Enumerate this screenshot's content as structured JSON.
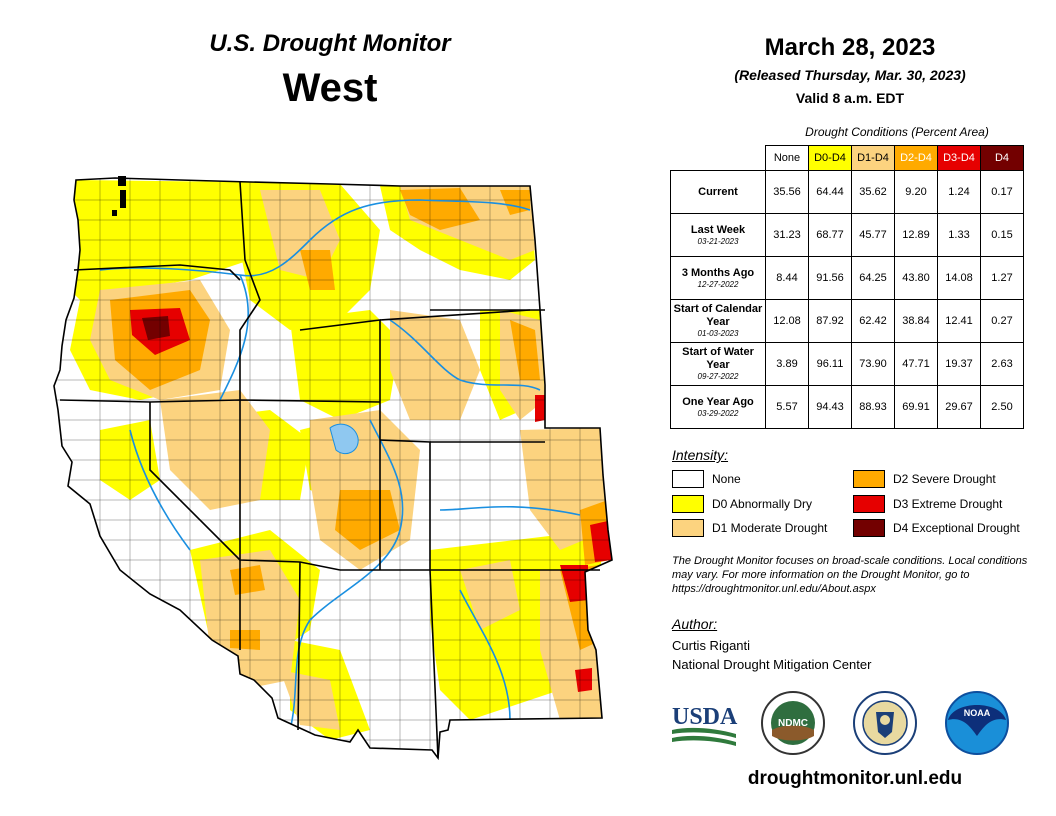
{
  "header": {
    "product": "U.S. Drought Monitor",
    "region": "West",
    "date": "March 28, 2023",
    "released": "(Released Thursday, Mar. 30, 2023)",
    "valid": "Valid 8 a.m. EDT"
  },
  "table": {
    "caption": "Drought Conditions (Percent Area)",
    "columns": [
      "None",
      "D0-D4",
      "D1-D4",
      "D2-D4",
      "D3-D4",
      "D4"
    ],
    "rows": [
      {
        "label": "Current",
        "date": "",
        "values": [
          "35.56",
          "64.44",
          "35.62",
          "9.20",
          "1.24",
          "0.17"
        ]
      },
      {
        "label": "Last Week",
        "date": "03-21-2023",
        "values": [
          "31.23",
          "68.77",
          "45.77",
          "12.89",
          "1.33",
          "0.15"
        ]
      },
      {
        "label": "3 Months Ago",
        "date": "12-27-2022",
        "values": [
          "8.44",
          "91.56",
          "64.25",
          "43.80",
          "14.08",
          "1.27"
        ]
      },
      {
        "label": "Start of Calendar Year",
        "date": "01-03-2023",
        "values": [
          "12.08",
          "87.92",
          "62.42",
          "38.84",
          "12.41",
          "0.27"
        ]
      },
      {
        "label": "Start of Water Year",
        "date": "09-27-2022",
        "values": [
          "3.89",
          "96.11",
          "73.90",
          "47.71",
          "19.37",
          "2.63"
        ]
      },
      {
        "label": "One Year Ago",
        "date": "03-29-2022",
        "values": [
          "5.57",
          "94.43",
          "88.93",
          "69.91",
          "29.67",
          "2.50"
        ]
      }
    ]
  },
  "legend": {
    "title": "Intensity:",
    "items": [
      {
        "label": "None",
        "color": "#ffffff"
      },
      {
        "label": "D0 Abnormally Dry",
        "color": "#ffff00"
      },
      {
        "label": "D1 Moderate Drought",
        "color": "#fcd37f"
      },
      {
        "label": "D2 Severe Drought",
        "color": "#ffaa00"
      },
      {
        "label": "D3 Extreme Drought",
        "color": "#e60000"
      },
      {
        "label": "D4 Exceptional Drought",
        "color": "#730000"
      }
    ]
  },
  "note": "The Drought Monitor focuses on broad-scale conditions. Local conditions may vary. For more information on the Drought Monitor, go to https://droughtmonitor.unl.edu/About.aspx",
  "author": {
    "title": "Author:",
    "name": "Curtis Riganti",
    "org": "National Drought Mitigation Center"
  },
  "logos": {
    "usda": "USDA",
    "ndmc": "NDMC",
    "noaa": "NOAA"
  },
  "website": "droughtmonitor.unl.edu"
}
